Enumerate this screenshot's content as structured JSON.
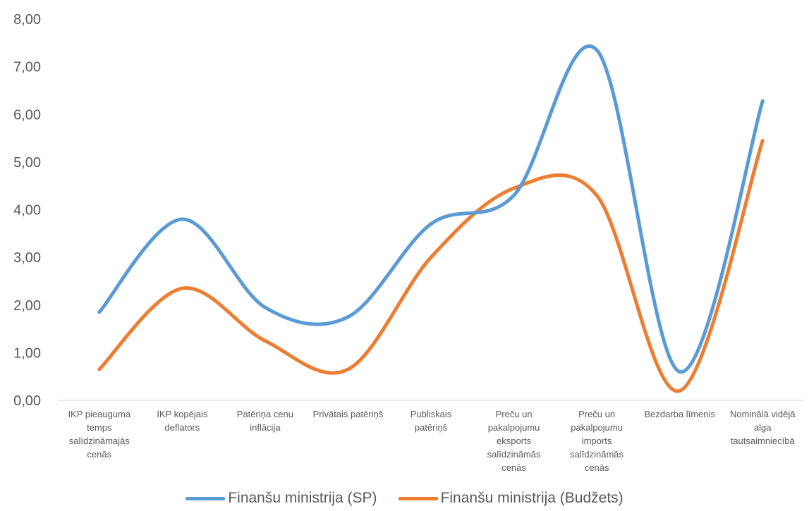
{
  "chart_data": {
    "type": "line",
    "smooth": true,
    "categories": [
      [
        "IKP pieauguma",
        "temps",
        "salīdzināmajās",
        "cenās"
      ],
      [
        "IKP kopējais",
        "deflators"
      ],
      [
        "Patēriņa cenu",
        "inflācija"
      ],
      [
        "Privātais patēriņš"
      ],
      [
        "Publiskais",
        "patēriņš"
      ],
      [
        "Preču un",
        "pakalpojumu",
        "eksports",
        "salīdzināmās",
        "cenās"
      ],
      [
        "Preču un",
        "pakalpojumu",
        "imports",
        "salīdzināmās",
        "cenās"
      ],
      [
        "Bezdarba līmenis"
      ],
      [
        "Nominālā vidējā",
        "alga",
        "tautsaimniecībā"
      ]
    ],
    "series": [
      {
        "name": "Finanšu ministrija (SP)",
        "color": "#5b9bd5",
        "values": [
          1.85,
          3.8,
          1.95,
          1.75,
          3.7,
          4.3,
          7.35,
          0.6,
          6.28
        ]
      },
      {
        "name": "Finanšu ministrija (Budžets)",
        "color": "#ed7d31",
        "values": [
          0.65,
          2.35,
          1.25,
          0.65,
          3.0,
          4.45,
          4.3,
          0.2,
          5.45
        ]
      }
    ],
    "yticks": [
      "0,00",
      "1,00",
      "2,00",
      "3,00",
      "4,00",
      "5,00",
      "6,00",
      "7,00",
      "8,00"
    ],
    "ylim": [
      0,
      8
    ],
    "title": "",
    "xlabel": "",
    "ylabel": "",
    "grid": false,
    "legend_position": "bottom"
  }
}
